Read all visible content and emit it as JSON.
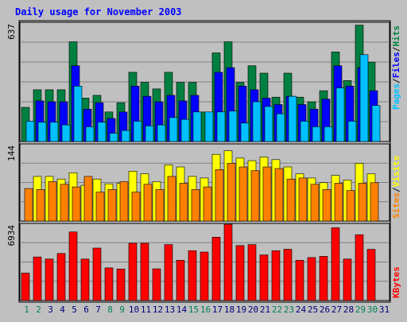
{
  "colors": {
    "background": "#c0c0c0",
    "plot_bg": "#c0c0c0",
    "grid": "#808080",
    "title": "#0000ff",
    "hits": "#008040",
    "files": "#0000ff",
    "pages": "#00c0ff",
    "visits": "#ffff00",
    "sites": "#ff8000",
    "kbytes": "#ff0000",
    "weekend_label": "#00805c",
    "weekday_label": "#000080"
  },
  "chart_data": [
    {
      "type": "bar",
      "title": "Daily usage for November 2003",
      "ymax_label": "637",
      "ylim": [
        0,
        637
      ],
      "right_labels": [
        "Pages",
        "Files",
        "Hits"
      ],
      "categories": [
        "1",
        "2",
        "3",
        "4",
        "5",
        "6",
        "7",
        "8",
        "9",
        "10",
        "11",
        "12",
        "13",
        "14",
        "15",
        "16",
        "17",
        "18",
        "19",
        "20",
        "21",
        "22",
        "23",
        "24",
        "25",
        "26",
        "27",
        "28",
        "29",
        "30",
        "31"
      ],
      "weekend_days": [
        "1",
        "2",
        "8",
        "9",
        "15",
        "16",
        "22",
        "23",
        "29",
        "30"
      ],
      "series": [
        {
          "name": "Hits",
          "color_key": "hits",
          "values": [
            185,
            280,
            280,
            280,
            540,
            235,
            250,
            160,
            210,
            375,
            320,
            285,
            375,
            320,
            320,
            160,
            480,
            540,
            320,
            410,
            370,
            240,
            370,
            240,
            215,
            275,
            485,
            330,
            630,
            430,
            0
          ]
        },
        {
          "name": "Files",
          "color_key": "files",
          "values": [
            0,
            220,
            215,
            215,
            410,
            175,
            210,
            125,
            160,
            300,
            245,
            215,
            250,
            220,
            250,
            0,
            375,
            400,
            300,
            280,
            235,
            200,
            245,
            200,
            175,
            230,
            410,
            300,
            400,
            275,
            0
          ]
        },
        {
          "name": "Pages",
          "color_key": "pages",
          "values": [
            110,
            105,
            105,
            90,
            300,
            80,
            105,
            45,
            60,
            110,
            85,
            90,
            130,
            120,
            160,
            160,
            160,
            165,
            100,
            215,
            190,
            150,
            245,
            110,
            80,
            80,
            290,
            110,
            470,
            195,
            0
          ]
        }
      ]
    },
    {
      "type": "bar",
      "ymax_label": "144",
      "ylim": [
        0,
        144
      ],
      "right_labels": [
        "Sites",
        "Visits"
      ],
      "series": [
        {
          "name": "Visits",
          "color_key": "visits",
          "values": [
            0,
            85,
            85,
            80,
            92,
            68,
            80,
            71,
            72,
            95,
            90,
            75,
            107,
            103,
            85,
            82,
            127,
            134,
            120,
            115,
            122,
            117,
            103,
            90,
            82,
            73,
            87,
            78,
            110,
            90,
            0
          ]
        },
        {
          "name": "Sites",
          "color_key": "sites",
          "values": [
            62,
            60,
            75,
            70,
            65,
            85,
            55,
            60,
            75,
            55,
            70,
            60,
            85,
            72,
            60,
            65,
            98,
            110,
            103,
            96,
            103,
            100,
            80,
            82,
            70,
            60,
            72,
            58,
            72,
            73,
            0
          ]
        }
      ]
    },
    {
      "type": "bar",
      "ymax_label": "6934",
      "ylim": [
        0,
        6934
      ],
      "right_labels": [
        "KBytes"
      ],
      "series": [
        {
          "name": "KBytes",
          "color_key": "kbytes",
          "values": [
            2520,
            4000,
            3810,
            4320,
            6300,
            3810,
            4820,
            3000,
            2890,
            5260,
            5260,
            2910,
            5140,
            3690,
            4580,
            4450,
            5820,
            7000,
            5050,
            5140,
            4190,
            4580,
            4710,
            3690,
            3950,
            4060,
            6680,
            3810,
            6040,
            4700,
            0
          ]
        }
      ]
    }
  ]
}
